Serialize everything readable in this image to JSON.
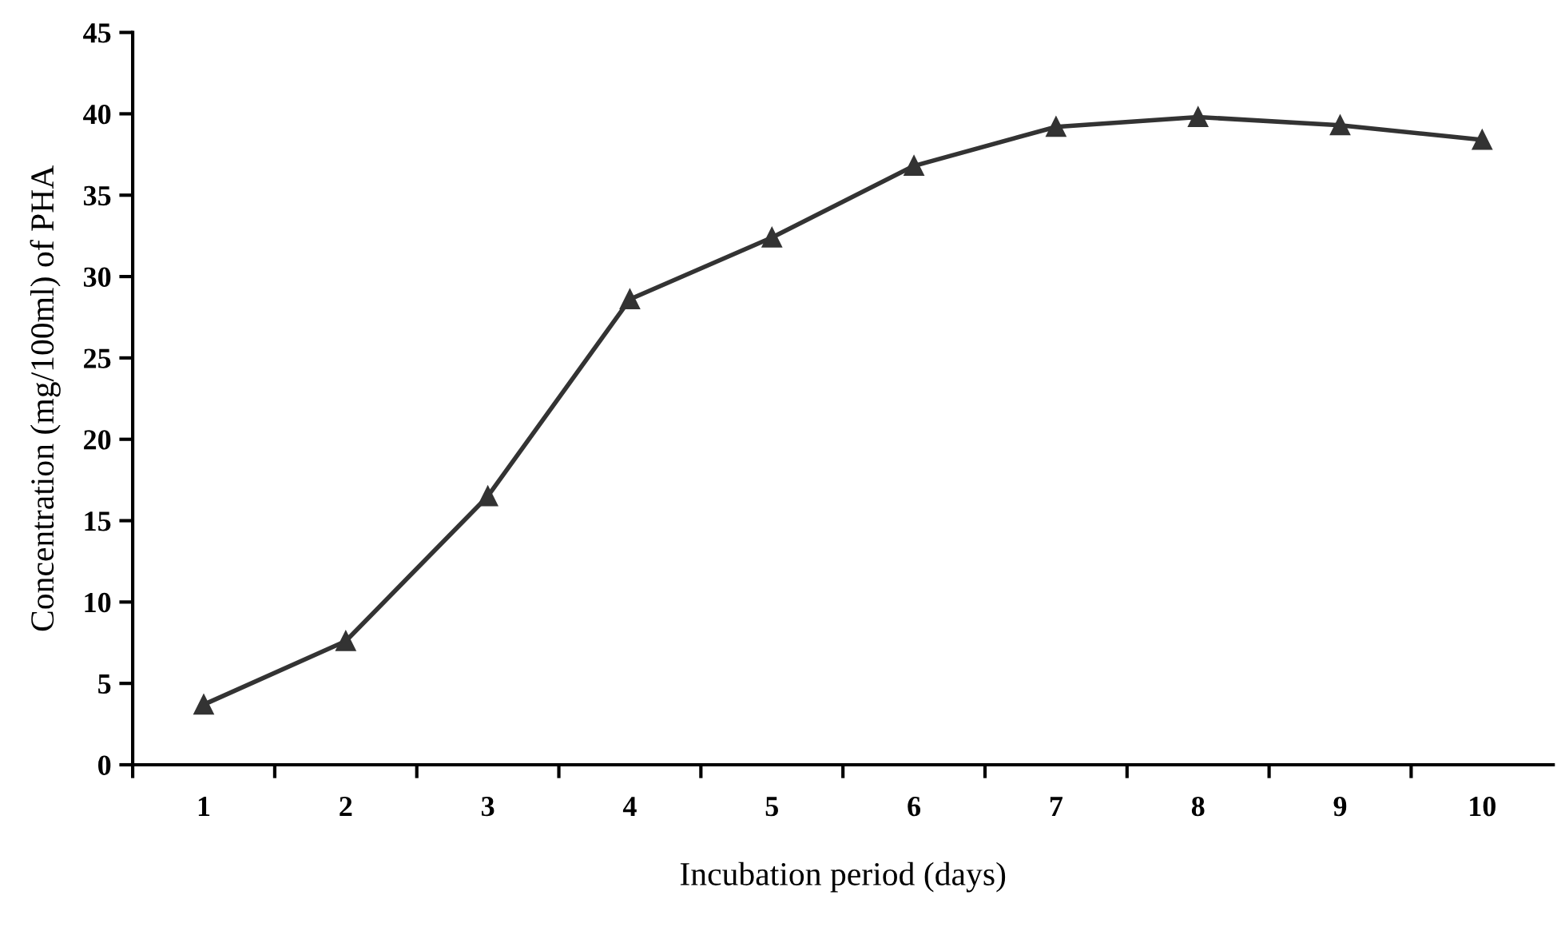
{
  "chart_data": {
    "type": "line",
    "xlabel": "Incubation period (days)",
    "ylabel": "Concentration (mg/100ml) of PHA",
    "categories": [
      "1",
      "2",
      "3",
      "4",
      "5",
      "6",
      "7",
      "8",
      "9",
      "10"
    ],
    "series": [
      {
        "color": "#333333",
        "values": [
          3.7,
          7.6,
          16.5,
          28.6,
          32.4,
          36.8,
          39.2,
          39.8,
          39.3,
          38.4
        ]
      }
    ],
    "ylim": [
      0,
      45
    ],
    "yticks": [
      0,
      5,
      10,
      15,
      20,
      25,
      30,
      35,
      40,
      45
    ],
    "grid": false,
    "legend": false,
    "marker": "triangle",
    "line_style": "solid"
  }
}
